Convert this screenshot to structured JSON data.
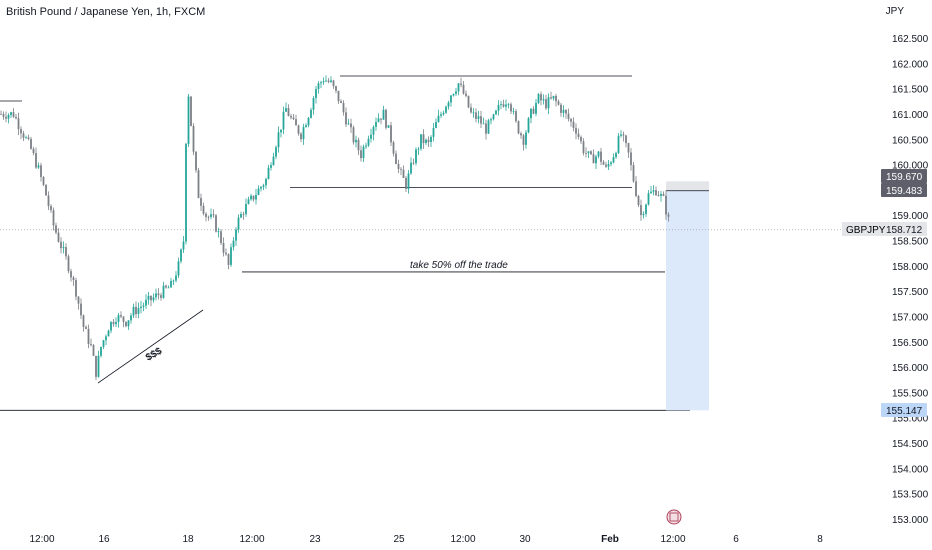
{
  "header": {
    "title": "British Pound / Japanese Yen, 1h, FXCM",
    "currency": "JPY"
  },
  "symbol_label": "GBPJPY",
  "price_tags": {
    "upper": "159.670",
    "entry": "159.483",
    "last": "158.712",
    "target": "155.147"
  },
  "annotations": {
    "take_profit_note": "take 50% off the trade",
    "liquidity_note": "$$$"
  },
  "event_icon": "economic-event-icon",
  "colors": {
    "bull_candle": "#26a69a",
    "bear_candle": "#7c7f86",
    "target_zone": "#dce9fb",
    "stop_zone": "#e3e5e8",
    "target_tag": "#bcd6f7",
    "dark_tag": "#5d606b",
    "last_tag": "#e3e5e8"
  },
  "chart_data": {
    "type": "candlestick",
    "title": "British Pound / Japanese Yen, 1h, FXCM",
    "ylabel": "JPY",
    "ylim": [
      152.95,
      163.0
    ],
    "y_ticks": [
      "162.500",
      "162.000",
      "161.500",
      "161.000",
      "160.500",
      "160.000",
      "159.000",
      "158.500",
      "158.000",
      "157.500",
      "157.000",
      "156.500",
      "156.000",
      "155.500",
      "155.000",
      "154.500",
      "154.000",
      "153.500",
      "153.000"
    ],
    "x_ticks": [
      "12:00",
      "16",
      "18",
      "12:00",
      "23",
      "25",
      "12:00",
      "30",
      "Feb",
      "12:00",
      "6",
      "8"
    ],
    "path_points": [
      [
        0,
        161.0
      ],
      [
        5,
        161.0
      ],
      [
        9,
        160.6
      ],
      [
        12,
        160.3
      ],
      [
        15,
        159.9
      ],
      [
        18,
        159.4
      ],
      [
        21,
        158.8
      ],
      [
        24,
        158.4
      ],
      [
        27,
        158.0
      ],
      [
        30,
        157.5
      ],
      [
        33,
        156.8
      ],
      [
        36,
        156.4
      ],
      [
        38,
        155.9
      ],
      [
        40,
        156.4
      ],
      [
        43,
        156.8
      ],
      [
        46,
        157.0
      ],
      [
        50,
        156.9
      ],
      [
        53,
        157.1
      ],
      [
        56,
        157.2
      ],
      [
        59,
        157.3
      ],
      [
        62,
        157.4
      ],
      [
        65,
        157.5
      ],
      [
        68,
        157.6
      ],
      [
        71,
        158.0
      ],
      [
        73,
        158.5
      ],
      [
        74,
        160.5
      ],
      [
        75,
        161.4
      ],
      [
        76,
        160.8
      ],
      [
        77,
        160.2
      ],
      [
        79,
        159.4
      ],
      [
        82,
        159.0
      ],
      [
        85,
        158.9
      ],
      [
        88,
        158.5
      ],
      [
        91,
        158.0
      ],
      [
        94,
        158.8
      ],
      [
        97,
        159.1
      ],
      [
        100,
        159.3
      ],
      [
        103,
        159.5
      ],
      [
        106,
        159.7
      ],
      [
        108,
        160.1
      ],
      [
        111,
        160.6
      ],
      [
        114,
        161.1
      ],
      [
        117,
        160.8
      ],
      [
        120,
        160.6
      ],
      [
        123,
        161.0
      ],
      [
        126,
        161.5
      ],
      [
        129,
        161.7
      ],
      [
        132,
        161.6
      ],
      [
        135,
        161.3
      ],
      [
        138,
        160.9
      ],
      [
        141,
        160.5
      ],
      [
        144,
        160.2
      ],
      [
        147,
        160.6
      ],
      [
        150,
        160.9
      ],
      [
        153,
        161.0
      ],
      [
        156,
        160.5
      ],
      [
        159,
        159.9
      ],
      [
        162,
        159.6
      ],
      [
        165,
        160.1
      ],
      [
        168,
        160.5
      ],
      [
        171,
        160.4
      ],
      [
        174,
        160.8
      ],
      [
        177,
        161.1
      ],
      [
        180,
        161.4
      ],
      [
        183,
        161.6
      ],
      [
        185,
        161.4
      ],
      [
        188,
        161.0
      ],
      [
        191,
        160.9
      ],
      [
        194,
        160.7
      ],
      [
        197,
        160.9
      ],
      [
        200,
        161.2
      ],
      [
        203,
        161.3
      ],
      [
        206,
        160.8
      ],
      [
        209,
        160.5
      ],
      [
        212,
        161.0
      ],
      [
        215,
        161.3
      ],
      [
        218,
        161.2
      ],
      [
        221,
        161.3
      ],
      [
        224,
        161.1
      ],
      [
        227,
        160.9
      ],
      [
        230,
        160.7
      ],
      [
        233,
        160.3
      ],
      [
        236,
        160.1
      ],
      [
        239,
        160.2
      ],
      [
        242,
        159.9
      ],
      [
        245,
        160.2
      ],
      [
        248,
        160.6
      ],
      [
        251,
        160.2
      ],
      [
        253,
        159.7
      ],
      [
        256,
        159.0
      ],
      [
        259,
        159.4
      ],
      [
        262,
        159.5
      ],
      [
        265,
        159.3
      ],
      [
        267,
        158.9
      ]
    ],
    "levels": {
      "range_high": 161.75,
      "range_low": 159.55,
      "take_half_level": 157.88,
      "entry": 159.483,
      "stop": 159.67,
      "target": 155.147,
      "last": 158.712
    }
  }
}
